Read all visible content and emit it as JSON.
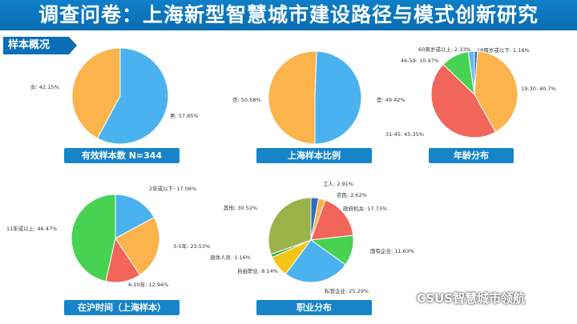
{
  "page": {
    "title": "调查问卷：上海新型智慧城市建设路径与模式创新研究",
    "section": "样本概况",
    "watermark": "CSUS智慧城市领航"
  },
  "colors": {
    "orange": "#fbb34b",
    "blue": "#4bb2f0",
    "green": "#47d251",
    "red": "#f2655b",
    "navy": "#2f6ebd",
    "lightblue": "#6fb6ec",
    "yellow": "#f4c516",
    "olive": "#9bb24a",
    "darkgreen": "#2fa844",
    "caption": "#1784c9"
  },
  "chart_data": [
    {
      "type": "pie",
      "title": "有效样本数 N=344",
      "slices": [
        {
          "label": "女: 42.15%",
          "value": 42.15,
          "color": "#fbb34b"
        },
        {
          "label": "男: 57.85%",
          "value": 57.85,
          "color": "#4bb2f0"
        }
      ]
    },
    {
      "type": "pie",
      "title": "上海样本比例",
      "slices": [
        {
          "label": "否: 50.58%",
          "value": 50.58,
          "color": "#fbb34b"
        },
        {
          "label": "是: 49.42%",
          "value": 49.42,
          "color": "#4bb2f0"
        }
      ]
    },
    {
      "type": "pie",
      "title": "年龄分布",
      "slices": [
        {
          "label": "18周岁或以下: 1.16%",
          "value": 1.16,
          "color": "#2f6ebd"
        },
        {
          "label": "19-30: 40.7%",
          "value": 40.7,
          "color": "#fbb34b"
        },
        {
          "label": "31-45: 45.35%",
          "value": 45.35,
          "color": "#f2655b"
        },
        {
          "label": "46-59: 10.47%",
          "value": 10.47,
          "color": "#47d251"
        },
        {
          "label": "60周岁或以上: 2.33%",
          "value": 2.33,
          "color": "#6fb6ec"
        }
      ]
    },
    {
      "type": "pie",
      "title": "在沪时间（上海样本）",
      "slices": [
        {
          "label": "2年或以下: 17.06%",
          "value": 17.06,
          "color": "#4bb2f0"
        },
        {
          "label": "3-5年: 23.53%",
          "value": 23.53,
          "color": "#fbb34b"
        },
        {
          "label": "6-10年: 12.94%",
          "value": 12.94,
          "color": "#f2655b"
        },
        {
          "label": "11年或以上: 46.47%",
          "value": 46.47,
          "color": "#47d251"
        }
      ]
    },
    {
      "type": "pie",
      "title": "职业分布",
      "slices": [
        {
          "label": "工人: 2.91%",
          "value": 2.91,
          "color": "#2f6ebd"
        },
        {
          "label": "农民: 2.62%",
          "value": 2.62,
          "color": "#fbb34b"
        },
        {
          "label": "政府机关: 17.73%",
          "value": 17.73,
          "color": "#f2655b"
        },
        {
          "label": "国有企业: 11.63%",
          "value": 11.63,
          "color": "#47d251"
        },
        {
          "label": "私营企业: 25.29%",
          "value": 25.29,
          "color": "#4bb2f0"
        },
        {
          "label": "自由职业: 8.14%",
          "value": 8.14,
          "color": "#f4c516"
        },
        {
          "label": "退休人员: 1.16%",
          "value": 1.16,
          "color": "#2fa844"
        },
        {
          "label": "其他: 30.52%",
          "value": 30.52,
          "color": "#9bb24a"
        }
      ]
    }
  ]
}
